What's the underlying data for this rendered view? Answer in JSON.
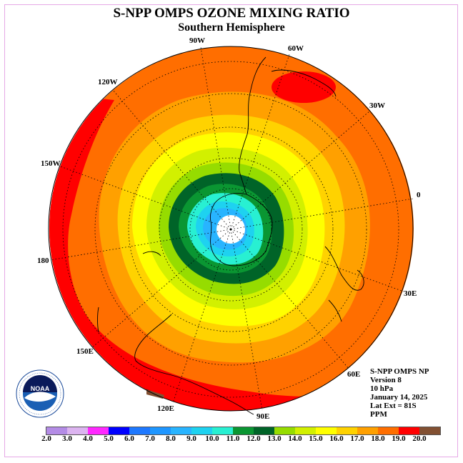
{
  "title": "S-NPP OMPS OZONE MIXING RATIO",
  "subtitle": "Southern Hemisphere",
  "longitude_labels": [
    "90W",
    "60W",
    "30W",
    "0",
    "30E",
    "60E",
    "90E",
    "120E",
    "150E",
    "180",
    "150W",
    "120W"
  ],
  "info": {
    "line1": "S-NPP OMPS NP",
    "line2": "Version 8",
    "line3": "10 hPa",
    "line4": "January 14, 2025",
    "line5": "Lat Ext = 81S",
    "line6": "PPM"
  },
  "logo": {
    "text": "NOAA",
    "ring_text": "NATIONAL OCEANIC AND ATMOSPHERIC ADMINISTRATION · U.S. DEPARTMENT OF COMMERCE"
  },
  "colorbar": {
    "ticks": [
      "2.0",
      "3.0",
      "4.0",
      "5.0",
      "6.0",
      "7.0",
      "8.0",
      "9.0",
      "10.0",
      "11.0",
      "12.0",
      "13.0",
      "14.0",
      "15.0",
      "16.0",
      "17.0",
      "18.0",
      "19.0",
      "20.0"
    ],
    "colors": [
      "#b48ce6",
      "#dcb4f0",
      "#ff28ff",
      "#0000ff",
      "#1e78ff",
      "#1e96ff",
      "#28b4ff",
      "#1ed2f0",
      "#28f0d2",
      "#0a9632",
      "#006428",
      "#96dc00",
      "#d2f000",
      "#ffff00",
      "#ffd200",
      "#ffa000",
      "#ff6e00",
      "#ff0000",
      "#825032"
    ]
  },
  "chart_data": {
    "type": "heatmap",
    "projection": "south-polar-stereographic",
    "variable": "Ozone mixing ratio",
    "units": "PPM",
    "pressure_level": "10 hPa",
    "date": "January 14, 2025",
    "value_range": [
      2.0,
      20.0
    ],
    "pole_value": "missing (white, south of 81S)",
    "pattern": "concentric increase from ~8 ppm near pole to ~18-19 ppm at equatorward edge"
  }
}
